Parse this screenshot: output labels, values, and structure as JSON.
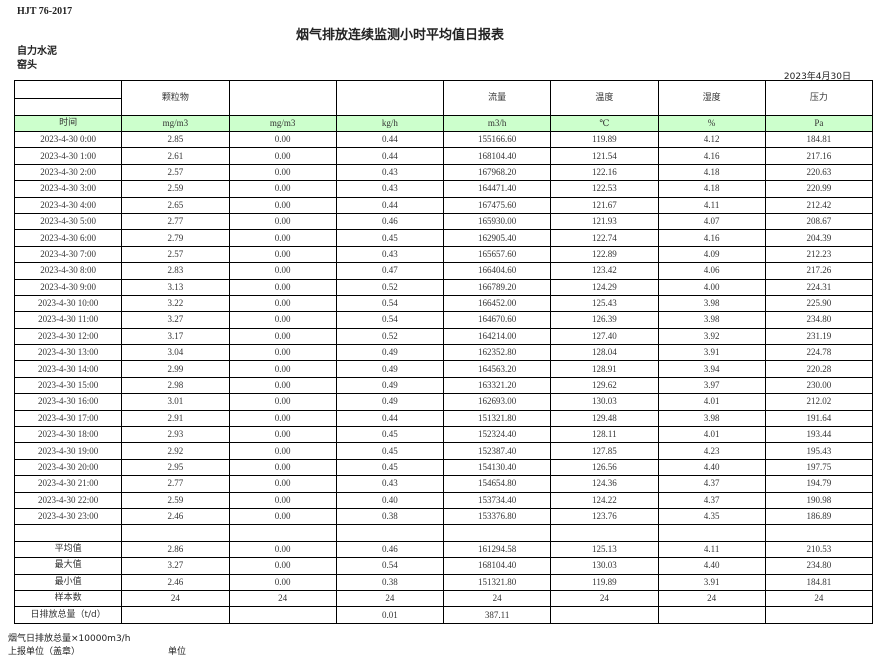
{
  "header": {
    "standard": "HJT   76-2017",
    "title": "烟气排放连续监测小时平均值日报表",
    "company": "自力水泥",
    "site": "窑头",
    "date": "2023年4月30日"
  },
  "table": {
    "columns": [
      "",
      "颗粒物",
      "",
      "",
      "流量",
      "温度",
      "湿度",
      "压力"
    ],
    "units": [
      "时间",
      "mg/m3",
      "mg/m3",
      "kg/h",
      "m3/h",
      "℃",
      "%",
      "Pa"
    ],
    "rows": [
      [
        "2023-4-30 0:00",
        "2.85",
        "0.00",
        "0.44",
        "155166.60",
        "119.89",
        "4.12",
        "184.81"
      ],
      [
        "2023-4-30 1:00",
        "2.61",
        "0.00",
        "0.44",
        "168104.40",
        "121.54",
        "4.16",
        "217.16"
      ],
      [
        "2023-4-30 2:00",
        "2.57",
        "0.00",
        "0.43",
        "167968.20",
        "122.16",
        "4.18",
        "220.63"
      ],
      [
        "2023-4-30 3:00",
        "2.59",
        "0.00",
        "0.43",
        "164471.40",
        "122.53",
        "4.18",
        "220.99"
      ],
      [
        "2023-4-30 4:00",
        "2.65",
        "0.00",
        "0.44",
        "167475.60",
        "121.67",
        "4.11",
        "212.42"
      ],
      [
        "2023-4-30 5:00",
        "2.77",
        "0.00",
        "0.46",
        "165930.00",
        "121.93",
        "4.07",
        "208.67"
      ],
      [
        "2023-4-30 6:00",
        "2.79",
        "0.00",
        "0.45",
        "162905.40",
        "122.74",
        "4.16",
        "204.39"
      ],
      [
        "2023-4-30 7:00",
        "2.57",
        "0.00",
        "0.43",
        "165657.60",
        "122.89",
        "4.09",
        "212.23"
      ],
      [
        "2023-4-30 8:00",
        "2.83",
        "0.00",
        "0.47",
        "166404.60",
        "123.42",
        "4.06",
        "217.26"
      ],
      [
        "2023-4-30 9:00",
        "3.13",
        "0.00",
        "0.52",
        "166789.20",
        "124.29",
        "4.00",
        "224.31"
      ],
      [
        "2023-4-30 10:00",
        "3.22",
        "0.00",
        "0.54",
        "166452.00",
        "125.43",
        "3.98",
        "225.90"
      ],
      [
        "2023-4-30 11:00",
        "3.27",
        "0.00",
        "0.54",
        "164670.60",
        "126.39",
        "3.98",
        "234.80"
      ],
      [
        "2023-4-30 12:00",
        "3.17",
        "0.00",
        "0.52",
        "164214.00",
        "127.40",
        "3.92",
        "231.19"
      ],
      [
        "2023-4-30 13:00",
        "3.04",
        "0.00",
        "0.49",
        "162352.80",
        "128.04",
        "3.91",
        "224.78"
      ],
      [
        "2023-4-30 14:00",
        "2.99",
        "0.00",
        "0.49",
        "164563.20",
        "128.91",
        "3.94",
        "220.28"
      ],
      [
        "2023-4-30 15:00",
        "2.98",
        "0.00",
        "0.49",
        "163321.20",
        "129.62",
        "3.97",
        "230.00"
      ],
      [
        "2023-4-30 16:00",
        "3.01",
        "0.00",
        "0.49",
        "162693.00",
        "130.03",
        "4.01",
        "212.02"
      ],
      [
        "2023-4-30 17:00",
        "2.91",
        "0.00",
        "0.44",
        "151321.80",
        "129.48",
        "3.98",
        "191.64"
      ],
      [
        "2023-4-30 18:00",
        "2.93",
        "0.00",
        "0.45",
        "152324.40",
        "128.11",
        "4.01",
        "193.44"
      ],
      [
        "2023-4-30 19:00",
        "2.92",
        "0.00",
        "0.45",
        "152387.40",
        "127.85",
        "4.23",
        "195.43"
      ],
      [
        "2023-4-30 20:00",
        "2.95",
        "0.00",
        "0.45",
        "154130.40",
        "126.56",
        "4.40",
        "197.75"
      ],
      [
        "2023-4-30 21:00",
        "2.77",
        "0.00",
        "0.43",
        "154654.80",
        "124.36",
        "4.37",
        "194.79"
      ],
      [
        "2023-4-30 22:00",
        "2.59",
        "0.00",
        "0.40",
        "153734.40",
        "124.22",
        "4.37",
        "190.98"
      ],
      [
        "2023-4-30 23:00",
        "2.46",
        "0.00",
        "0.38",
        "153376.80",
        "123.76",
        "4.35",
        "186.89"
      ]
    ],
    "summary": [
      [
        "平均值",
        "2.86",
        "0.00",
        "0.46",
        "161294.58",
        "125.13",
        "4.11",
        "210.53"
      ],
      [
        "最大值",
        "3.27",
        "0.00",
        "0.54",
        "168104.40",
        "130.03",
        "4.40",
        "234.80"
      ],
      [
        "最小值",
        "2.46",
        "0.00",
        "0.38",
        "151321.80",
        "119.89",
        "3.91",
        "184.81"
      ],
      [
        "样本数",
        "24",
        "24",
        "24",
        "24",
        "24",
        "24",
        "24"
      ],
      [
        "日排放总量（t/d）",
        "",
        "",
        "0.01",
        "387.11",
        "",
        "",
        ""
      ]
    ]
  },
  "footer": {
    "note": "烟气日排放总量×10000m3/h",
    "reporter_label": "上报单位（盖章）",
    "unit_label": "单位"
  }
}
